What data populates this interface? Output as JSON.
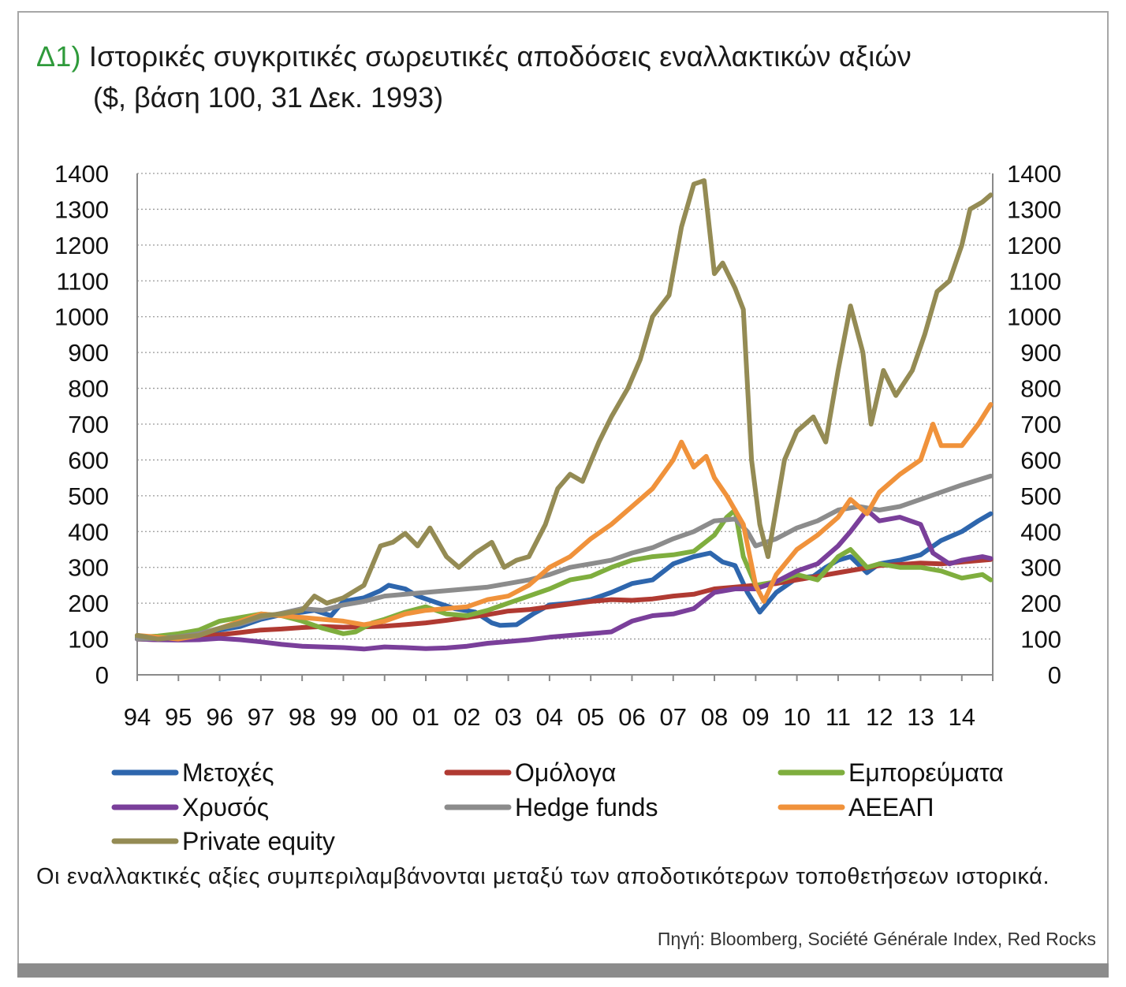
{
  "title_tag": "Δ1)",
  "title": "Ιστορικές συγκριτικές σωρευτικές αποδόσεις εναλλακτικών αξιών",
  "subtitle": "($, βάση 100, 31 Δεκ. 1993)",
  "note": "Οι εναλλακτικές αξίες συμπεριλαμβάνονται μεταξύ των αποδοτικότερων τοποθετήσεων ιστορικά.",
  "source": "Πηγή: Bloomberg, Société Générale Index, Red Rocks",
  "chart_data": {
    "type": "line",
    "title": "",
    "xlabel": "",
    "ylabel": "",
    "xlim": [
      1994.0,
      2014.75
    ],
    "ylim": [
      0,
      1400
    ],
    "y_ticks": [
      0,
      100,
      200,
      300,
      400,
      500,
      600,
      700,
      800,
      900,
      1000,
      1100,
      1200,
      1300,
      1400
    ],
    "x_tick_labels": [
      "94",
      "95",
      "96",
      "97",
      "98",
      "99",
      "00",
      "01",
      "02",
      "03",
      "04",
      "05",
      "06",
      "07",
      "08",
      "09",
      "10",
      "11",
      "12",
      "13",
      "14"
    ],
    "secondary_y_axis": true,
    "grid": "horizontal dotted",
    "legend_position": "bottom",
    "series": [
      {
        "name": "Μετοχές",
        "color": "#2e66ad",
        "x": [
          1994,
          1994.5,
          1995,
          1995.5,
          1996,
          1996.5,
          1997,
          1997.5,
          1998,
          1998.3,
          1998.7,
          1999,
          1999.5,
          1999.9,
          2000.1,
          2000.5,
          2000.8,
          2001.3,
          2001.7,
          2002.2,
          2002.6,
          2002.8,
          2003.2,
          2003.6,
          2004,
          2004.5,
          2005,
          2005.5,
          2006,
          2006.5,
          2007,
          2007.5,
          2007.9,
          2008.2,
          2008.5,
          2008.8,
          2009.1,
          2009.5,
          2010,
          2010.4,
          2010.7,
          2011,
          2011.3,
          2011.7,
          2012,
          2012.5,
          2013,
          2013.5,
          2014,
          2014.4,
          2014.7
        ],
        "y": [
          100,
          102,
          104,
          112,
          125,
          135,
          155,
          168,
          175,
          180,
          165,
          205,
          215,
          235,
          250,
          240,
          220,
          200,
          185,
          175,
          145,
          138,
          140,
          170,
          195,
          200,
          210,
          230,
          255,
          265,
          310,
          330,
          340,
          315,
          305,
          230,
          175,
          230,
          270,
          275,
          300,
          320,
          330,
          285,
          310,
          320,
          335,
          375,
          400,
          430,
          450
        ]
      },
      {
        "name": "Ομόλογα",
        "color": "#b03a32",
        "x": [
          1994,
          1994.5,
          1995,
          1995.5,
          1996,
          1996.5,
          1997,
          1997.5,
          1998,
          1998.5,
          1999,
          1999.5,
          2000,
          2000.5,
          2001,
          2001.5,
          2002,
          2002.5,
          2003,
          2003.5,
          2004,
          2004.5,
          2005,
          2005.5,
          2006,
          2006.5,
          2007,
          2007.5,
          2008,
          2008.5,
          2009,
          2009.5,
          2010,
          2010.5,
          2011,
          2011.5,
          2012,
          2012.5,
          2013,
          2013.5,
          2014,
          2014.7
        ],
        "y": [
          100,
          98,
          102,
          108,
          112,
          118,
          125,
          128,
          132,
          135,
          133,
          134,
          136,
          140,
          145,
          152,
          160,
          168,
          178,
          182,
          190,
          198,
          205,
          210,
          208,
          212,
          220,
          225,
          240,
          245,
          250,
          255,
          265,
          275,
          285,
          295,
          305,
          308,
          312,
          310,
          315,
          322
        ]
      },
      {
        "name": "Εμπορεύματα",
        "color": "#7fae3e",
        "x": [
          1994,
          1994.5,
          1995,
          1995.5,
          1996,
          1996.5,
          1997,
          1997.5,
          1998,
          1998.5,
          1999,
          1999.3,
          1999.7,
          2000,
          2000.5,
          2001,
          2001.5,
          2002,
          2002.5,
          2003,
          2003.5,
          2004,
          2004.5,
          2005,
          2005.5,
          2006,
          2006.5,
          2007,
          2007.5,
          2008,
          2008.3,
          2008.5,
          2008.7,
          2009,
          2009.5,
          2010,
          2010.5,
          2011,
          2011.3,
          2011.7,
          2012,
          2012.5,
          2013,
          2013.5,
          2014,
          2014.5,
          2014.7
        ],
        "y": [
          105,
          108,
          115,
          125,
          150,
          160,
          170,
          165,
          150,
          130,
          115,
          120,
          145,
          155,
          175,
          190,
          170,
          165,
          180,
          200,
          220,
          240,
          265,
          275,
          300,
          320,
          330,
          335,
          345,
          390,
          440,
          460,
          330,
          250,
          260,
          280,
          265,
          330,
          350,
          300,
          310,
          300,
          300,
          290,
          270,
          280,
          265
        ]
      },
      {
        "name": "Χρυσός",
        "color": "#7a3f9a",
        "x": [
          1994,
          1994.5,
          1995,
          1995.5,
          1996,
          1996.5,
          1997,
          1997.5,
          1998,
          1998.5,
          1999,
          1999.5,
          2000,
          2000.5,
          2001,
          2001.5,
          2002,
          2002.5,
          2003,
          2003.5,
          2004,
          2004.5,
          2005,
          2005.5,
          2006,
          2006.5,
          2007,
          2007.5,
          2008,
          2008.5,
          2009,
          2009.5,
          2010,
          2010.5,
          2011,
          2011.3,
          2011.7,
          2012,
          2012.5,
          2013,
          2013.3,
          2013.7,
          2014,
          2014.5,
          2014.7
        ],
        "y": [
          100,
          98,
          97,
          98,
          102,
          98,
          92,
          85,
          80,
          78,
          76,
          72,
          78,
          76,
          73,
          75,
          80,
          88,
          93,
          98,
          105,
          110,
          115,
          120,
          150,
          165,
          170,
          185,
          230,
          240,
          240,
          260,
          290,
          310,
          360,
          400,
          460,
          430,
          440,
          420,
          340,
          310,
          320,
          330,
          325
        ]
      },
      {
        "name": "Hedge funds",
        "color": "#8c8c8c",
        "x": [
          1994,
          1994.5,
          1995,
          1995.5,
          1996,
          1996.5,
          1997,
          1997.5,
          1998,
          1998.5,
          1999,
          1999.5,
          2000,
          2000.5,
          2001,
          2001.5,
          2002,
          2002.5,
          2003,
          2003.5,
          2004,
          2004.5,
          2005,
          2005.5,
          2006,
          2006.5,
          2007,
          2007.5,
          2008,
          2008.5,
          2008.8,
          2009,
          2009.5,
          2010,
          2010.5,
          2011,
          2011.5,
          2012,
          2012.5,
          2013,
          2013.5,
          2014,
          2014.7
        ],
        "y": [
          100,
          102,
          106,
          115,
          130,
          142,
          160,
          172,
          185,
          180,
          195,
          205,
          220,
          225,
          230,
          235,
          240,
          245,
          255,
          265,
          280,
          300,
          310,
          320,
          340,
          355,
          380,
          400,
          430,
          435,
          400,
          360,
          380,
          410,
          430,
          460,
          470,
          460,
          470,
          490,
          510,
          530,
          555
        ]
      },
      {
        "name": "ΑΕΕΑΠ",
        "color": "#f0923b",
        "x": [
          1994,
          1994.5,
          1995,
          1995.5,
          1996,
          1996.5,
          1997,
          1997.5,
          1998,
          1998.5,
          1999,
          1999.5,
          2000,
          2000.5,
          2001,
          2001.5,
          2002,
          2002.5,
          2003,
          2003.5,
          2004,
          2004.5,
          2005,
          2005.5,
          2006,
          2006.5,
          2007,
          2007.2,
          2007.5,
          2007.8,
          2008,
          2008.3,
          2008.7,
          2009,
          2009.2,
          2009.5,
          2010,
          2010.5,
          2011,
          2011.3,
          2011.7,
          2012,
          2012.5,
          2013,
          2013.3,
          2013.5,
          2014,
          2014.4,
          2014.7
        ],
        "y": [
          110,
          105,
          100,
          110,
          130,
          150,
          170,
          165,
          160,
          155,
          150,
          140,
          150,
          170,
          180,
          185,
          190,
          210,
          220,
          250,
          300,
          330,
          380,
          420,
          470,
          520,
          600,
          650,
          580,
          610,
          550,
          500,
          420,
          250,
          205,
          280,
          350,
          390,
          440,
          490,
          450,
          510,
          560,
          600,
          700,
          640,
          640,
          700,
          755
        ]
      },
      {
        "name": "Private equity",
        "color": "#948b54",
        "x": [
          1994,
          1994.5,
          1995,
          1995.5,
          1996,
          1996.5,
          1997,
          1997.5,
          1998,
          1998.3,
          1998.6,
          1999,
          1999.5,
          1999.9,
          2000.2,
          2000.5,
          2000.8,
          2001.1,
          2001.5,
          2001.8,
          2002.2,
          2002.6,
          2002.9,
          2003.2,
          2003.5,
          2003.9,
          2004.2,
          2004.5,
          2004.8,
          2005.2,
          2005.5,
          2005.9,
          2006.2,
          2006.5,
          2006.9,
          2007.2,
          2007.5,
          2007.75,
          2008,
          2008.2,
          2008.5,
          2008.7,
          2008.9,
          2009.1,
          2009.3,
          2009.7,
          2010,
          2010.4,
          2010.7,
          2011,
          2011.3,
          2011.6,
          2011.8,
          2012.1,
          2012.4,
          2012.8,
          2013.1,
          2013.4,
          2013.7,
          2014,
          2014.2,
          2014.5,
          2014.7
        ],
        "y": [
          110,
          100,
          105,
          110,
          130,
          145,
          165,
          170,
          180,
          220,
          200,
          215,
          250,
          360,
          370,
          395,
          360,
          410,
          330,
          300,
          340,
          370,
          300,
          320,
          330,
          420,
          520,
          560,
          540,
          650,
          720,
          800,
          880,
          1000,
          1060,
          1250,
          1370,
          1380,
          1120,
          1150,
          1080,
          1020,
          600,
          420,
          330,
          600,
          680,
          720,
          650,
          850,
          1030,
          900,
          700,
          850,
          780,
          850,
          950,
          1070,
          1100,
          1200,
          1300,
          1320,
          1340
        ]
      }
    ]
  }
}
